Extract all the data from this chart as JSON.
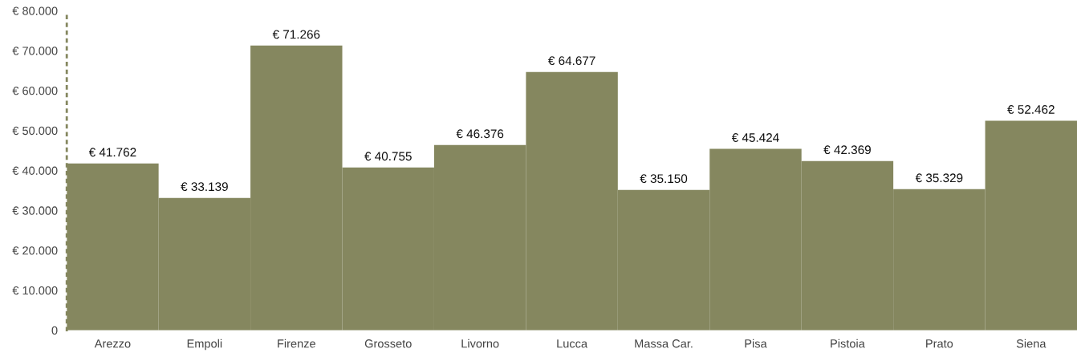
{
  "chart_data": {
    "type": "bar",
    "categories": [
      "Arezzo",
      "Empoli",
      "Firenze",
      "Grosseto",
      "Livorno",
      "Lucca",
      "Massa Car.",
      "Pisa",
      "Pistoia",
      "Prato",
      "Siena"
    ],
    "values": [
      41762,
      33139,
      71266,
      40755,
      46376,
      64677,
      35150,
      45424,
      42369,
      35329,
      52462
    ],
    "value_labels": [
      "€ 41.762",
      "€ 33.139",
      "€ 71.266",
      "€ 40.755",
      "€ 46.376",
      "€ 64.677",
      "€ 35.150",
      "€ 45.424",
      "€ 42.369",
      "€ 35.329",
      "€ 52.462"
    ],
    "color": "#85875f",
    "ylim": [
      0,
      80000
    ],
    "yticks": [
      {
        "value": 0,
        "label": "0"
      },
      {
        "value": 10000,
        "label": "€ 10.000"
      },
      {
        "value": 20000,
        "label": "€ 20.000"
      },
      {
        "value": 30000,
        "label": "€ 30.000"
      },
      {
        "value": 40000,
        "label": "€ 40.000"
      },
      {
        "value": 50000,
        "label": "€ 50.000"
      },
      {
        "value": 60000,
        "label": "€ 60.000"
      },
      {
        "value": 70000,
        "label": "€ 70.000"
      },
      {
        "value": 80000,
        "label": "€ 80.000"
      }
    ],
    "grid": false
  }
}
